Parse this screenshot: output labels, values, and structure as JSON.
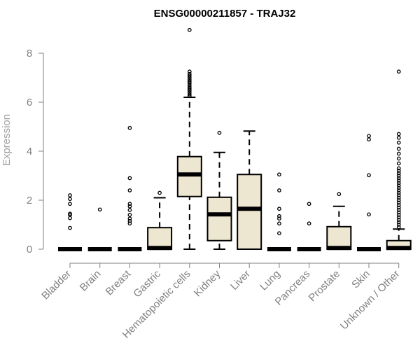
{
  "chart_data": {
    "type": "boxplot",
    "title": "ENSG00000211857 - TRAJ32",
    "xlabel": "",
    "ylabel": "Expression",
    "ylim": [
      0,
      9
    ],
    "yticks": [
      0,
      2,
      4,
      6,
      8
    ],
    "grid": false,
    "legend": "none",
    "box_fill": "#ede6d0",
    "box_stroke": "#000000",
    "categories": [
      "Bladder",
      "Brain",
      "Breast",
      "Gastric",
      "Hematopoietic cells",
      "Kidney",
      "Liver",
      "Lung",
      "Pancreas",
      "Prostate",
      "Skin",
      "Unknown / Other"
    ],
    "boxes": [
      {
        "q1": 0,
        "median": 0,
        "q3": 0,
        "whisker_low": 0,
        "whisker_high": 0,
        "outliers": [
          0.87,
          1.27,
          1.4,
          1.45,
          1.85,
          2.05,
          2.2
        ]
      },
      {
        "q1": 0,
        "median": 0,
        "q3": 0,
        "whisker_low": 0,
        "whisker_high": 0,
        "outliers": [
          1.62
        ]
      },
      {
        "q1": 0,
        "median": 0,
        "q3": 0,
        "whisker_low": 0,
        "whisker_high": 0,
        "outliers": [
          1.05,
          1.15,
          1.25,
          1.4,
          1.6,
          1.75,
          1.85,
          2.4,
          2.9,
          4.95
        ]
      },
      {
        "q1": 0,
        "median": 0.05,
        "q3": 0.88,
        "whisker_low": 0,
        "whisker_high": 2.1,
        "outliers": [
          2.3
        ]
      },
      {
        "q1": 2.15,
        "median": 3.05,
        "q3": 3.78,
        "whisker_low": 0,
        "whisker_high": 6.2,
        "outliers": [
          6.25,
          6.32,
          6.4,
          6.48,
          6.55,
          6.62,
          6.7,
          6.78,
          6.85,
          6.92,
          7.0,
          7.08,
          7.15,
          7.25,
          8.95
        ]
      },
      {
        "q1": 0.35,
        "median": 1.42,
        "q3": 2.12,
        "whisker_low": 0,
        "whisker_high": 3.95,
        "outliers": [
          4.75
        ]
      },
      {
        "q1": 0,
        "median": 1.65,
        "q3": 3.05,
        "whisker_low": 0,
        "whisker_high": 4.82,
        "outliers": []
      },
      {
        "q1": 0,
        "median": 0,
        "q3": 0,
        "whisker_low": 0,
        "whisker_high": 0,
        "outliers": [
          0.65,
          1.05,
          1.25,
          1.35,
          1.65,
          2.4,
          3.05
        ]
      },
      {
        "q1": 0,
        "median": 0,
        "q3": 0,
        "whisker_low": 0,
        "whisker_high": 0,
        "outliers": [
          1.05,
          1.85
        ]
      },
      {
        "q1": 0,
        "median": 0.05,
        "q3": 0.92,
        "whisker_low": 0,
        "whisker_high": 1.75,
        "outliers": [
          2.25
        ]
      },
      {
        "q1": 0,
        "median": 0,
        "q3": 0,
        "whisker_low": 0,
        "whisker_high": 0,
        "outliers": [
          1.42,
          3.02,
          4.48,
          4.62
        ]
      },
      {
        "q1": 0,
        "median": 0.05,
        "q3": 0.35,
        "whisker_low": 0,
        "whisker_high": 0.82,
        "outliers": [
          0.9,
          1.0,
          1.1,
          1.2,
          1.3,
          1.4,
          1.5,
          1.6,
          1.7,
          1.8,
          1.9,
          2.0,
          2.1,
          2.2,
          2.3,
          2.4,
          2.5,
          2.6,
          2.7,
          2.8,
          2.9,
          3.0,
          3.1,
          3.2,
          3.3,
          3.5,
          3.7,
          3.9,
          4.1,
          4.35,
          4.55,
          4.7,
          7.25
        ]
      }
    ]
  }
}
